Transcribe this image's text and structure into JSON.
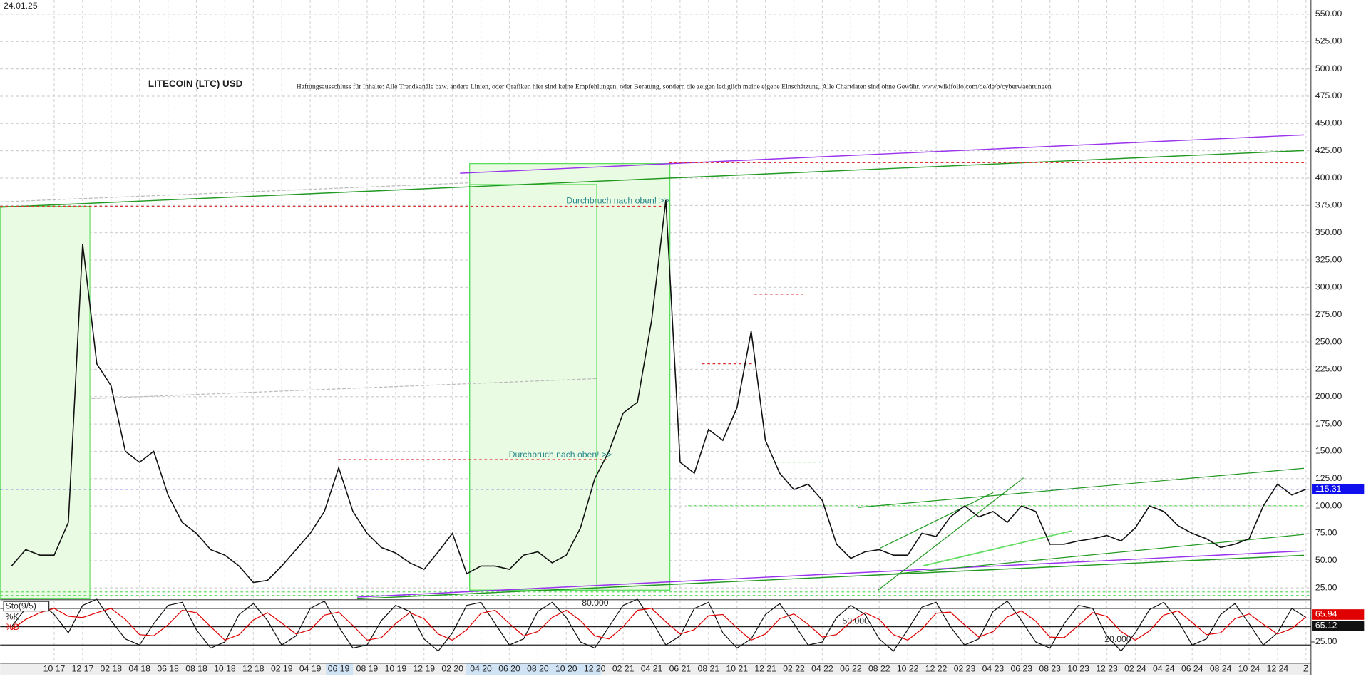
{
  "chart_data": {
    "type": "line",
    "date": "24.01.25",
    "title": "LITECOIN (LTC) USD",
    "note": "Haftungsausschluss für Inhalte: Alle Trendkanäle bzw. andere Linien, oder Grafiken hier sind keine Empfehlungen, oder Beratung, sondern die zeigen lediglich meine eigene Einschätzung. Alle Chartdaten sind ohne Gewähr.  www.wikifolio.com/de/de/p/cyberwaehrungen",
    "annotations": [
      "Durchbruch nach oben! >>",
      "Durchbruch nach oben! >>"
    ],
    "categories": [
      null,
      null,
      null,
      "10 17",
      null,
      "12 17",
      null,
      "02 18",
      null,
      "04 18",
      null,
      "06 18",
      null,
      "08 18",
      null,
      "10 18",
      null,
      "12 18",
      null,
      "02 19",
      null,
      "04 19",
      null,
      "06 19",
      null,
      "08 19",
      null,
      "10 19",
      null,
      "12 19",
      null,
      "02 20",
      null,
      "04 20",
      null,
      "06 20",
      null,
      "08 20",
      null,
      "10 20",
      null,
      "12 20",
      null,
      "02 21",
      null,
      "04 21",
      null,
      "06 21",
      null,
      "08 21",
      null,
      "10 21",
      null,
      "12 21",
      null,
      "02 22",
      null,
      "04 22",
      null,
      "06 22",
      null,
      "08 22",
      null,
      "10 22",
      null,
      "12 22",
      null,
      "02 23",
      null,
      "04 23",
      null,
      "06 23",
      null,
      "08 23",
      null,
      "10 23",
      null,
      "12 23",
      null,
      "02 24",
      null,
      "04 24",
      null,
      "06 24",
      null,
      "08 24",
      null,
      "10 24",
      null,
      "12 24",
      null,
      "Z"
    ],
    "series": [
      {
        "color": "#111111",
        "values": [
          45,
          60,
          55,
          55,
          85,
          340,
          230,
          210,
          150,
          140,
          150,
          110,
          85,
          75,
          60,
          55,
          45,
          30,
          32,
          45,
          60,
          75,
          95,
          135,
          95,
          75,
          62,
          57,
          48,
          42,
          58,
          75,
          38,
          45,
          45,
          42,
          55,
          58,
          48,
          55,
          80,
          125,
          150,
          185,
          195,
          270,
          380,
          140,
          130,
          170,
          160,
          190,
          260,
          160,
          130,
          115,
          120,
          105,
          65,
          52,
          58,
          60,
          55,
          55,
          75,
          72,
          90,
          100,
          90,
          95,
          85,
          100,
          95,
          65,
          65,
          68,
          70,
          73,
          68,
          80,
          100,
          95,
          82,
          75,
          70,
          62,
          65,
          70,
          100,
          120,
          110,
          115.31
        ]
      }
    ],
    "ylim": [
      15,
      563
    ],
    "yticks": [
      {
        "value": 25,
        "label": "25.00"
      },
      {
        "value": 50,
        "label": "50.00"
      },
      {
        "value": 75,
        "label": "75.00"
      },
      {
        "value": 100,
        "label": "100.00"
      },
      {
        "value": 125,
        "label": "125.00"
      },
      {
        "value": 150,
        "label": "150.00"
      },
      {
        "value": 175,
        "label": "175.00"
      },
      {
        "value": 200,
        "label": "200.00"
      },
      {
        "value": 225,
        "label": "225.00"
      },
      {
        "value": 250,
        "label": "250.00"
      },
      {
        "value": 275,
        "label": "275.00"
      },
      {
        "value": 300,
        "label": "300.00"
      },
      {
        "value": 325,
        "label": "325.00"
      },
      {
        "value": 350,
        "label": "350.00"
      },
      {
        "value": 375,
        "label": "375.00"
      },
      {
        "value": 400,
        "label": "400.00"
      },
      {
        "value": 425,
        "label": "425.00"
      },
      {
        "value": 450,
        "label": "450.00"
      },
      {
        "value": 475,
        "label": "475.00"
      },
      {
        "value": 500,
        "label": "500.00"
      },
      {
        "value": 525,
        "label": "525.00"
      },
      {
        "value": 550,
        "label": "550.00"
      }
    ],
    "grid": true,
    "indicator": {
      "type": "line",
      "name": "Sto(9/5)",
      "series": [
        {
          "name": "%K",
          "color": "#111111",
          "values": [
            50,
            80,
            90,
            70,
            40,
            85,
            95,
            60,
            30,
            20,
            55,
            85,
            90,
            45,
            15,
            25,
            70,
            88,
            60,
            20,
            35,
            80,
            92,
            50,
            15,
            20,
            60,
            85,
            75,
            30,
            10,
            40,
            85,
            90,
            55,
            20,
            30,
            75,
            90,
            65,
            25,
            15,
            50,
            85,
            95,
            60,
            20,
            35,
            80,
            90,
            40,
            15,
            30,
            70,
            88,
            55,
            20,
            25,
            65,
            85,
            70,
            30,
            10,
            45,
            82,
            90,
            50,
            20,
            30,
            75,
            92,
            60,
            25,
            15,
            55,
            85,
            80,
            35,
            10,
            40,
            78,
            90,
            60,
            20,
            30,
            70,
            88,
            55,
            20,
            40,
            80,
            65.12
          ]
        },
        {
          "name": "%D",
          "color": "#e00000",
          "values": [
            45,
            62,
            73,
            80,
            67,
            65,
            73,
            80,
            62,
            37,
            35,
            53,
            77,
            73,
            50,
            28,
            37,
            61,
            73,
            56,
            38,
            45,
            69,
            74,
            52,
            28,
            32,
            55,
            73,
            63,
            38,
            28,
            45,
            72,
            77,
            55,
            35,
            42,
            65,
            77,
            60,
            35,
            30,
            50,
            77,
            80,
            58,
            38,
            45,
            68,
            70,
            48,
            28,
            38,
            63,
            71,
            54,
            33,
            37,
            58,
            73,
            62,
            37,
            28,
            46,
            72,
            74,
            53,
            33,
            42,
            66,
            76,
            59,
            33,
            32,
            52,
            73,
            67,
            42,
            28,
            43,
            69,
            76,
            57,
            37,
            40,
            63,
            71,
            54,
            38,
            47,
            65.94
          ]
        }
      ],
      "ylim": [
        0,
        100
      ],
      "yticks": [
        {
          "value": 25,
          "label": "25.00"
        }
      ],
      "levels": [
        {
          "value": 80,
          "label": "80.000"
        },
        {
          "value": 50,
          "label": "50.000"
        },
        {
          "value": 20,
          "label": "20.000"
        }
      ]
    }
  }
}
